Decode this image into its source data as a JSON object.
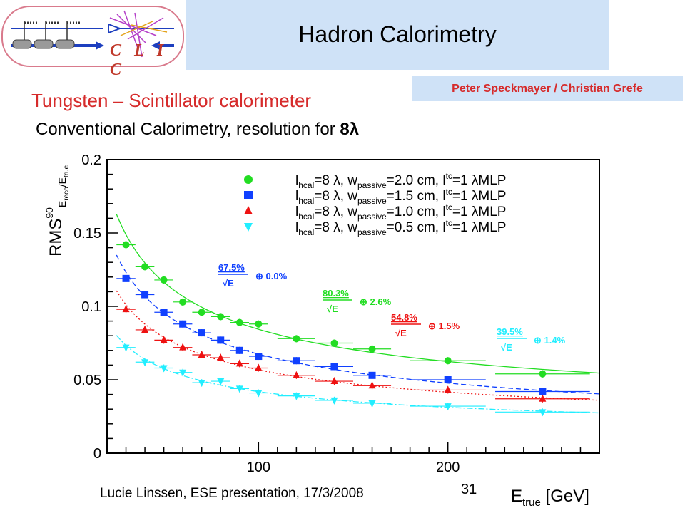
{
  "header": {
    "logo_text": "C L I C",
    "title": "Hadron Calorimetry",
    "authors": "Peter Speckmayer / Christian Grefe"
  },
  "subtitle": "Tungsten – Scintillator calorimeter",
  "subtitle2_text": "Conventional Calorimetry, resolution for ",
  "subtitle2_bold": "8λ",
  "footer": "Lucie Linssen, ESE presentation, 17/3/2008",
  "page_number": "31",
  "colors": {
    "green": "#22dd22",
    "blue": "#1040ff",
    "red": "#ee1111",
    "cyan": "#22eeff",
    "accent": "#d62b2b",
    "title_bg": "#cfe2f7"
  },
  "chart_data": {
    "type": "scatter",
    "xlim": [
      20,
      280
    ],
    "ylim": [
      0,
      0.2
    ],
    "xticks": [
      100,
      200
    ],
    "yticks": [
      0,
      0.05,
      0.1,
      0.15,
      0.2
    ],
    "ytick_labels": [
      "0",
      "0.05",
      "0.1",
      "0.15",
      "0.2"
    ],
    "xlabel": "E_true [GeV]",
    "ylabel": "RMS90 E_reco/E_true",
    "x": [
      30,
      40,
      50,
      60,
      70,
      80,
      90,
      100,
      120,
      140,
      160,
      200,
      250
    ],
    "series": [
      {
        "name": "l_hcal=8 λ, w_passive=2.0 cm, l_tc=1 λMLP",
        "marker": "circle",
        "color": "#22dd22",
        "line": "solid",
        "values": [
          0.142,
          0.127,
          0.118,
          0.103,
          0.096,
          0.093,
          0.089,
          0.088,
          0.078,
          0.075,
          0.071,
          0.063,
          0.054
        ],
        "fit_label": "80.3%",
        "fit_const": "2.6%"
      },
      {
        "name": "l_hcal=8 λ, w_passive=1.5 cm, l_tc=1 λMLP",
        "marker": "square",
        "color": "#1040ff",
        "line": "dashed",
        "values": [
          0.119,
          0.108,
          0.096,
          0.088,
          0.082,
          0.077,
          0.07,
          0.066,
          0.063,
          0.059,
          0.053,
          0.05,
          0.042
        ],
        "fit_label": "67.5%",
        "fit_const": "0.0%"
      },
      {
        "name": "l_hcal=8 λ, w_passive=1.0 cm, l_tc=1 λMLP",
        "marker": "triangle-up",
        "color": "#ee1111",
        "line": "dotted",
        "values": [
          0.098,
          0.084,
          0.077,
          0.072,
          0.067,
          0.065,
          0.061,
          0.058,
          0.053,
          0.049,
          0.046,
          0.043,
          0.037
        ],
        "fit_label": "54.8%",
        "fit_const": "1.5%"
      },
      {
        "name": "l_hcal=8 λ, w_passive=0.5 cm, l_tc=1 λMLP",
        "marker": "triangle-down",
        "color": "#22eeff",
        "line": "dashdot",
        "values": [
          0.072,
          0.062,
          0.058,
          0.055,
          0.048,
          0.049,
          0.044,
          0.041,
          0.039,
          0.036,
          0.034,
          0.032,
          0.028
        ],
        "fit_label": "39.5%",
        "fit_const": "1.4%"
      }
    ]
  }
}
